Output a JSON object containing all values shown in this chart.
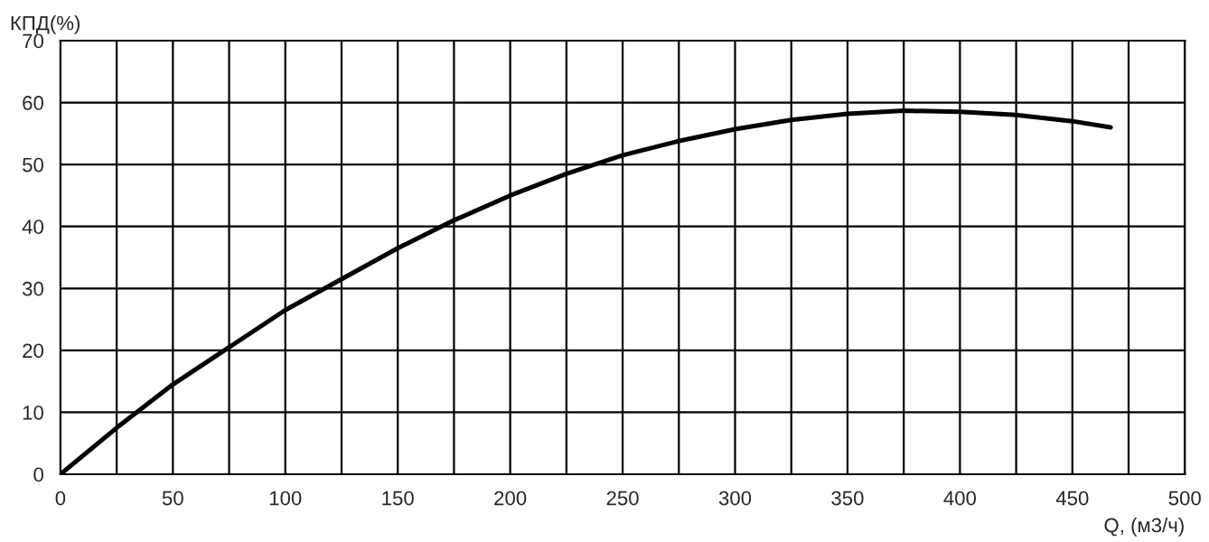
{
  "chart_data": {
    "type": "line",
    "ylabel": "КПД(%)",
    "xlabel": "Q, (м3/ч)",
    "x": [
      0,
      25,
      50,
      75,
      100,
      125,
      150,
      175,
      200,
      225,
      250,
      275,
      300,
      325,
      350,
      375,
      400,
      425,
      450,
      467
    ],
    "series": [
      {
        "color": "#000000",
        "values": [
          0,
          7.5,
          14.5,
          20.5,
          26.5,
          31.5,
          36.5,
          41,
          45,
          48.5,
          51.5,
          53.8,
          55.7,
          57.2,
          58.2,
          58.7,
          58.5,
          58,
          57,
          56
        ]
      }
    ],
    "xlim": [
      0,
      500
    ],
    "ylim": [
      0,
      70
    ],
    "xticks": [
      0,
      {
        "value": 25,
        "label": null
      },
      50,
      {
        "value": 75,
        "label": null
      },
      100,
      {
        "value": 125,
        "label": null
      },
      150,
      {
        "value": 175,
        "label": null
      },
      200,
      {
        "value": 225,
        "label": null
      },
      250,
      {
        "value": 275,
        "label": null
      },
      300,
      {
        "value": 325,
        "label": null
      },
      350,
      {
        "value": 375,
        "label": null
      },
      400,
      {
        "value": 425,
        "label": null
      },
      450,
      {
        "value": 475,
        "label": null
      },
      500
    ],
    "yticks": [
      0,
      10,
      20,
      30,
      40,
      50,
      60,
      70
    ],
    "grid": true,
    "marker": "none",
    "line_style": "solid"
  }
}
